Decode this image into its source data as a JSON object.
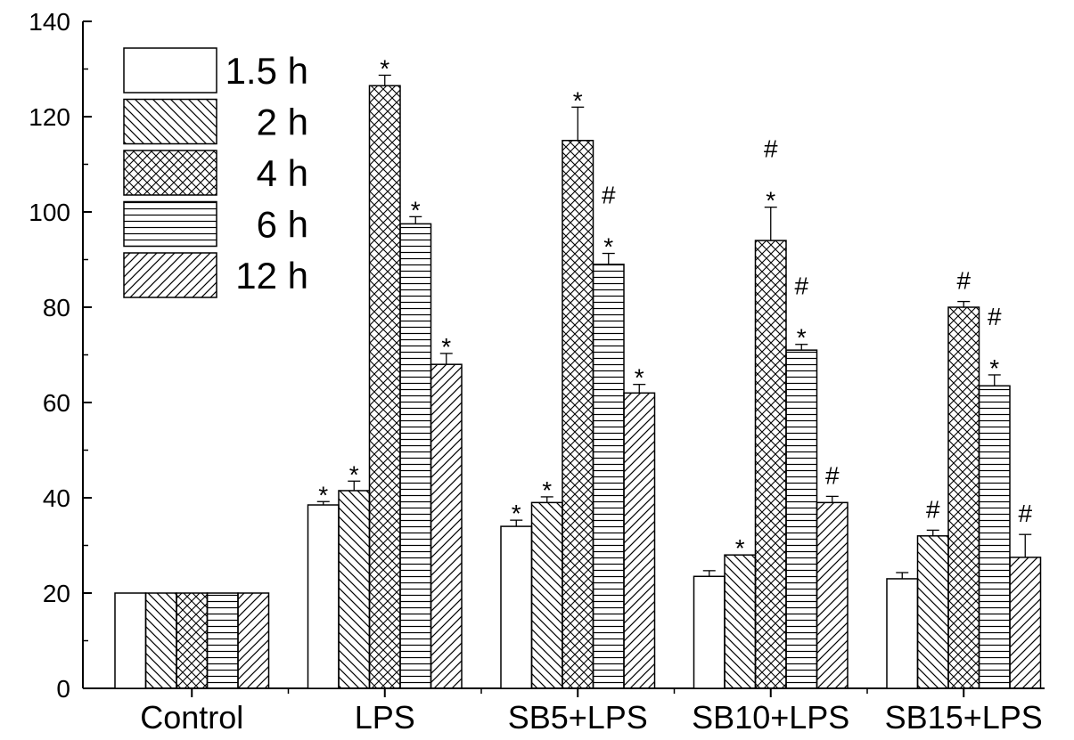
{
  "chart_data": {
    "type": "bar",
    "title": "",
    "xlabel": "",
    "ylabel": "",
    "ylim": [
      0,
      140
    ],
    "yticks": [
      0,
      20,
      40,
      60,
      80,
      100,
      120,
      140
    ],
    "grid": false,
    "legend_position": "top-left",
    "categories": [
      "Control",
      "LPS",
      "SB5+LPS",
      "SB10+LPS",
      "SB15+LPS"
    ],
    "series": [
      {
        "name": "1.5 h",
        "pattern": "blank",
        "values": [
          20,
          38.5,
          34,
          23.5,
          23
        ],
        "errors": [
          0,
          0.7,
          1.3,
          1.2,
          1.3
        ],
        "marks": [
          "",
          "*",
          "*",
          "",
          ""
        ]
      },
      {
        "name": "2 h",
        "pattern": "back-diagonal",
        "values": [
          20,
          41.5,
          39,
          28,
          32
        ],
        "errors": [
          0,
          2,
          1.2,
          0,
          1.2
        ],
        "marks": [
          "",
          "*",
          "*",
          "*",
          "#"
        ]
      },
      {
        "name": "4 h",
        "pattern": "crosshatch",
        "values": [
          20,
          126.5,
          115,
          94,
          80
        ],
        "errors": [
          0,
          2.2,
          7,
          7,
          1.2
        ],
        "marks": [
          "",
          "*",
          "*",
          "#\n*",
          "#"
        ]
      },
      {
        "name": "6 h",
        "pattern": "horizontal",
        "values": [
          20,
          97.5,
          89,
          71,
          63.5
        ],
        "errors": [
          0,
          1.5,
          2.3,
          1.2,
          2.3
        ],
        "marks": [
          "",
          "*",
          "#\n*",
          "#\n*",
          "#\n*"
        ]
      },
      {
        "name": "12 h",
        "pattern": "forward-diagonal",
        "values": [
          20,
          68,
          62,
          39,
          27.5
        ],
        "errors": [
          0,
          2.3,
          1.8,
          1.3,
          4.8
        ],
        "marks": [
          "",
          "*",
          "*",
          "#",
          "#"
        ]
      }
    ]
  }
}
